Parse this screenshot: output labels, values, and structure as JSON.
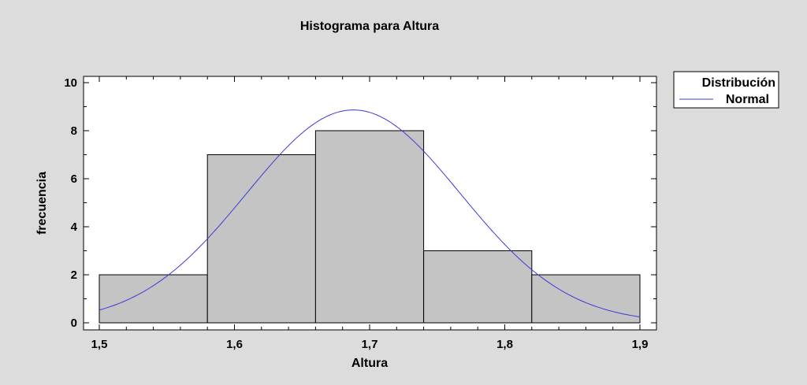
{
  "chart_data": {
    "type": "bar",
    "title": "Histograma para Altura",
    "xlabel": "Altura",
    "ylabel": "frecuencia",
    "xlim": [
      1.5,
      1.9
    ],
    "ylim": [
      0,
      10
    ],
    "x_ticks": [
      "1,5",
      "1,6",
      "1,7",
      "1,8",
      "1,9"
    ],
    "x_tick_values": [
      1.5,
      1.6,
      1.7,
      1.8,
      1.9
    ],
    "y_ticks": [
      "0",
      "2",
      "4",
      "6",
      "8",
      "10"
    ],
    "y_tick_values": [
      0,
      2,
      4,
      6,
      8,
      10
    ],
    "bins": [
      {
        "from": 1.5,
        "to": 1.58,
        "value": 2
      },
      {
        "from": 1.58,
        "to": 1.66,
        "value": 7
      },
      {
        "from": 1.66,
        "to": 1.74,
        "value": 8
      },
      {
        "from": 1.74,
        "to": 1.82,
        "value": 3
      },
      {
        "from": 1.82,
        "to": 1.9,
        "value": 2
      }
    ],
    "curve": {
      "type": "normal",
      "mean": 1.688,
      "sd": 0.0792,
      "scale": 1.76
    },
    "legend": {
      "title": "Distribución",
      "entries": [
        {
          "name": "Normal",
          "color": "#3b3bd6"
        }
      ],
      "position": "top-right"
    },
    "colors": {
      "bar_fill": "#c4c4c4",
      "bar_stroke": "#000000",
      "curve": "#3b3bd6",
      "plot_background": "#ffffff",
      "background": "#dcdcdc"
    },
    "grid": false
  }
}
